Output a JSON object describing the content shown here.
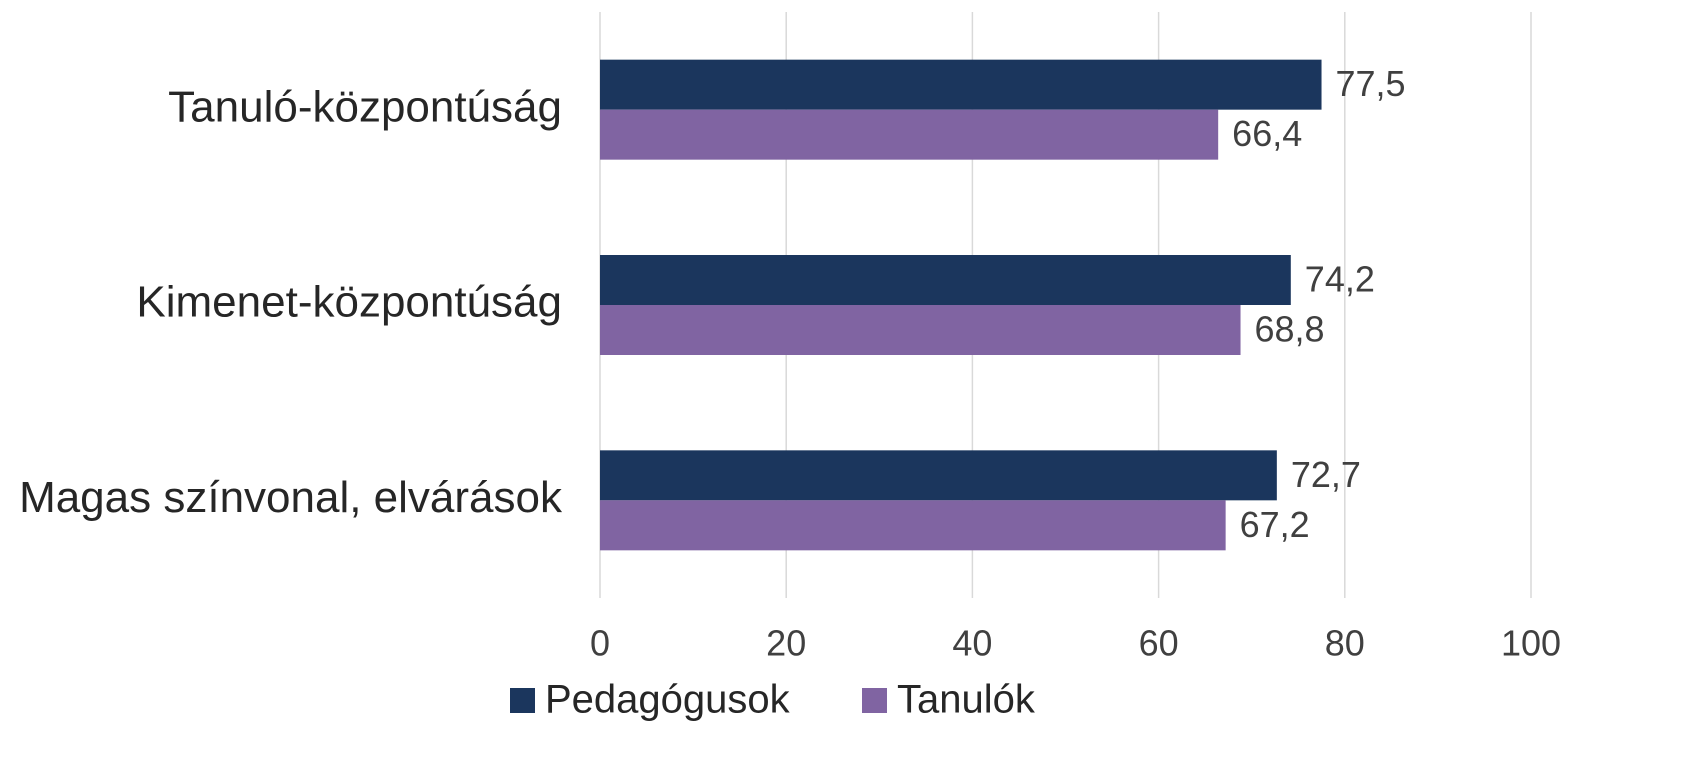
{
  "chart_data": {
    "type": "bar",
    "categories": [
      "Tanuló-központúság",
      "Kimenet-központúság",
      "Magas színvonal, elvárások"
    ],
    "series": [
      {
        "name": "Pedagógusok",
        "color": "#1b365d",
        "values": [
          77.5,
          74.2,
          72.7
        ],
        "value_labels": [
          "77,5",
          "74,2",
          "72,7"
        ]
      },
      {
        "name": "Tanulók",
        "color": "#8064a2",
        "values": [
          66.4,
          68.8,
          67.2
        ],
        "value_labels": [
          "66,4",
          "68,8",
          "67,2"
        ]
      }
    ],
    "xlim": [
      0,
      100
    ],
    "xticks": [
      0,
      20,
      40,
      60,
      80,
      100
    ],
    "grid": true,
    "legend": "bottom"
  }
}
